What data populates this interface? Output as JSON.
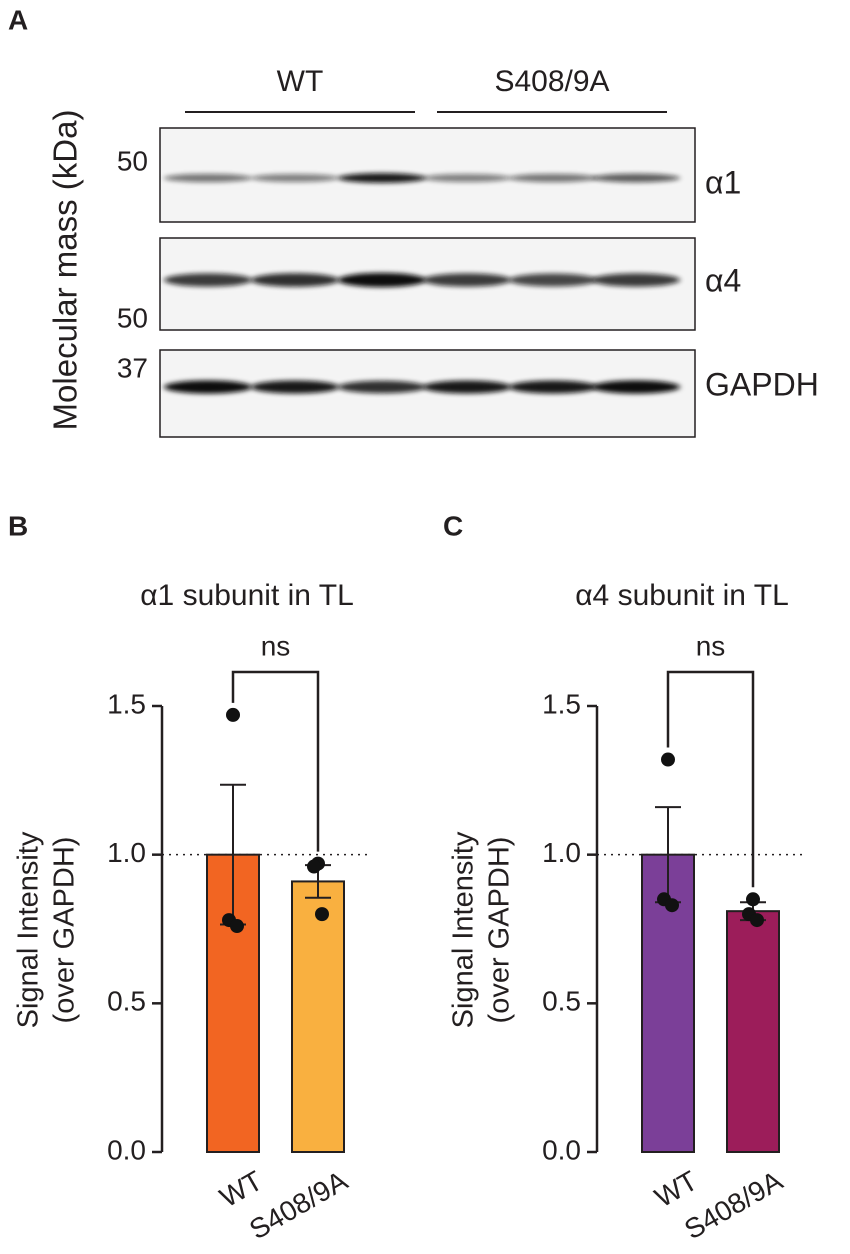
{
  "blot": {
    "panel": "A",
    "ylabel": "Molecular mass (kDa)",
    "groups": [
      "WT",
      "S408/9A"
    ],
    "rows": [
      {
        "label": "α1",
        "marker": "50"
      },
      {
        "label": "α4",
        "marker": "50"
      },
      {
        "label": "GAPDH",
        "marker": "37"
      }
    ]
  },
  "chart_data": [
    {
      "type": "bar",
      "panel": "B",
      "title": "α1 subunit in TL",
      "ylabel": [
        "Signal Intensity",
        "(over GAPDH)"
      ],
      "categories": [
        "WT",
        "S408/9A"
      ],
      "values": [
        1.0,
        0.91
      ],
      "errors": [
        0.235,
        0.055
      ],
      "points": [
        [
          1.47,
          0.78,
          0.76
        ],
        [
          0.97,
          0.96,
          0.8
        ]
      ],
      "colors": [
        "#f26522",
        "#f9b040"
      ],
      "annotation": "ns",
      "hline": 1.0,
      "ylim": [
        0,
        1.5
      ],
      "yticks": [
        {
          "value": 0,
          "label": "0.0"
        },
        0.5,
        {
          "value": 1,
          "label": "1.0"
        },
        1.5
      ]
    },
    {
      "type": "bar",
      "panel": "C",
      "title": "α4 subunit in TL",
      "ylabel": [
        "Signal Intensity",
        "(over GAPDH)"
      ],
      "categories": [
        "WT",
        "S408/9A"
      ],
      "values": [
        1.0,
        0.81
      ],
      "errors": [
        0.16,
        0.03
      ],
      "points": [
        [
          1.32,
          0.85,
          0.83
        ],
        [
          0.85,
          0.8,
          0.78
        ]
      ],
      "colors": [
        "#7b3f98",
        "#9c1d5a"
      ],
      "annotation": "ns",
      "hline": 1.0,
      "ylim": [
        0,
        1.5
      ],
      "yticks": [
        {
          "value": 0,
          "label": "0.0"
        },
        0.5,
        {
          "value": 1,
          "label": "1.0"
        },
        1.5
      ]
    }
  ]
}
